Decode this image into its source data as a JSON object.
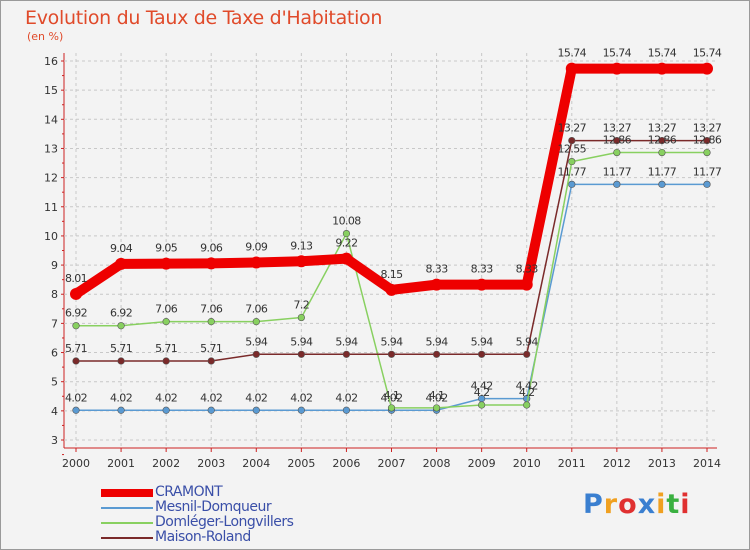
{
  "chart_data": {
    "type": "line",
    "title": "Evolution du Taux de Taxe d'Habitation",
    "subtitle": "(en %)",
    "x": [
      "2000",
      "2001",
      "2002",
      "2003",
      "2004",
      "2005",
      "2006",
      "2007",
      "2008",
      "2009",
      "2010",
      "2011",
      "2012",
      "2013",
      "2014"
    ],
    "ylim": [
      3,
      16
    ],
    "yticks": [
      "3",
      "4",
      "5",
      "6",
      "7",
      "8",
      "9",
      "10",
      "11",
      "12",
      "13",
      "14",
      "15",
      "16"
    ],
    "grid": "horizontal-dashed",
    "legend_position": "bottom-left",
    "series": [
      {
        "name": "CRAMONT",
        "color": "#ee0000",
        "values": [
          8.01,
          9.04,
          9.05,
          9.06,
          9.09,
          9.13,
          9.22,
          8.15,
          8.33,
          8.33,
          8.33,
          15.74,
          15.74,
          15.74,
          15.74
        ],
        "labels": [
          "8.01",
          "9.04",
          "9.05",
          "9.06",
          "9.09",
          "9.13",
          "9.22",
          "8.15",
          "8.33",
          "8.33",
          "8.33",
          "15.74",
          "15.74",
          "15.74",
          "15.74"
        ]
      },
      {
        "name": "Mesnil-Domqueur",
        "color": "#5a9ad2",
        "values": [
          4.02,
          4.02,
          4.02,
          4.02,
          4.02,
          4.02,
          4.02,
          4.02,
          4.02,
          4.42,
          4.42,
          11.77,
          11.77,
          11.77,
          11.77
        ],
        "labels": [
          "4.02",
          "4.02",
          "4.02",
          "4.02",
          "4.02",
          "4.02",
          "4.02",
          "4.02",
          "4.02",
          "4.42",
          "4.42",
          "11.77",
          "11.77",
          "11.77",
          "11.77"
        ]
      },
      {
        "name": "Domléger-Longvillers",
        "color": "#88d060",
        "values": [
          6.92,
          6.92,
          7.06,
          7.06,
          7.06,
          7.2,
          10.08,
          4.1,
          4.1,
          4.2,
          4.2,
          12.55,
          12.86,
          12.86,
          12.86
        ],
        "labels": [
          "6.92",
          "6.92",
          "7.06",
          "7.06",
          "7.06",
          "7.2",
          "10.08",
          "4.1",
          "4.1",
          "4.2",
          "4.2",
          "12.55",
          "12.86",
          "12.86",
          "12.86"
        ]
      },
      {
        "name": "Maison-Roland",
        "color": "#7a2a2a",
        "values": [
          5.71,
          5.71,
          5.71,
          5.71,
          5.94,
          5.94,
          5.94,
          5.94,
          5.94,
          5.94,
          5.94,
          13.27,
          13.27,
          13.27,
          13.27
        ],
        "labels": [
          "5.71",
          "5.71",
          "5.71",
          "5.71",
          "5.94",
          "5.94",
          "5.94",
          "5.94",
          "5.94",
          "5.94",
          "5.94",
          "13.27",
          "13.27",
          "13.27",
          "13.27"
        ]
      }
    ]
  },
  "logo": {
    "text": "Proxiti",
    "letters": [
      "P",
      "r",
      "o",
      "x",
      "i",
      "t",
      "i"
    ],
    "colors": [
      "#3a7fd0",
      "#f0a020",
      "#e03030",
      "#3a7fd0",
      "#f0a020",
      "#3ab040",
      "#e03030"
    ]
  }
}
